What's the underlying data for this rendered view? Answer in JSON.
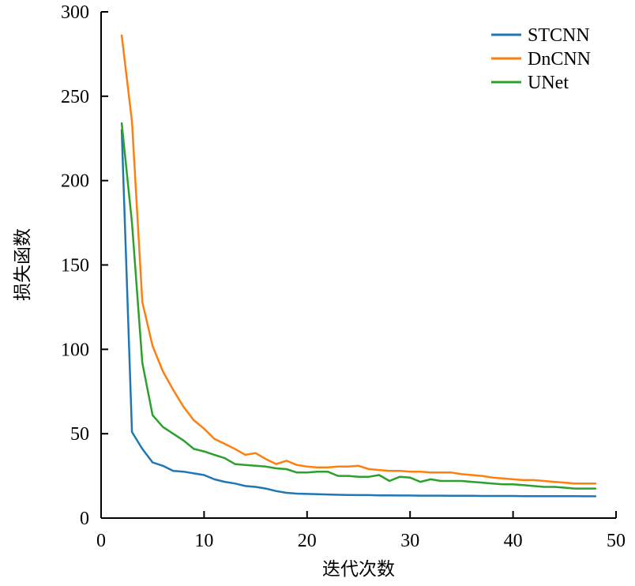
{
  "chart_data": {
    "type": "line",
    "xlabel": "迭代次数",
    "ylabel": "损失函数",
    "xlim": [
      0,
      50
    ],
    "ylim": [
      0,
      300
    ],
    "xticks": [
      0,
      10,
      20,
      30,
      40,
      50
    ],
    "yticks": [
      0,
      50,
      100,
      150,
      200,
      250,
      300
    ],
    "grid": false,
    "legend_position": "top-right",
    "x": [
      2,
      3,
      4,
      5,
      6,
      7,
      8,
      9,
      10,
      11,
      12,
      13,
      14,
      15,
      16,
      17,
      18,
      19,
      20,
      21,
      22,
      23,
      24,
      25,
      26,
      27,
      28,
      29,
      30,
      31,
      32,
      33,
      34,
      35,
      36,
      37,
      38,
      39,
      40,
      41,
      42,
      43,
      44,
      45,
      46,
      47,
      48
    ],
    "series": [
      {
        "name": "STCNN",
        "color": "#1f77b4",
        "values": [
          230,
          51,
          41,
          33,
          31,
          28,
          27.5,
          26.5,
          25.5,
          23,
          21.5,
          20.5,
          19,
          18.5,
          17.5,
          16,
          15,
          14.5,
          14.3,
          14.2,
          14,
          13.8,
          13.7,
          13.6,
          13.6,
          13.5,
          13.5,
          13.4,
          13.4,
          13.3,
          13.3,
          13.3,
          13.2,
          13.2,
          13.2,
          13.1,
          13.1,
          13.1,
          13.1,
          13.0,
          13.0,
          13.0,
          13.0,
          13.0,
          13.0,
          12.9,
          12.9
        ]
      },
      {
        "name": "DnCNN",
        "color": "#ff7f0e",
        "values": [
          286,
          235,
          128,
          102,
          87,
          76,
          66,
          58,
          53,
          47,
          44,
          41,
          37.5,
          38.5,
          35,
          32,
          34,
          31.5,
          30.5,
          30,
          30,
          30.5,
          30.5,
          31,
          29,
          28.5,
          28,
          28,
          27.5,
          27.5,
          27,
          27,
          27,
          26,
          25.5,
          25,
          24,
          23.5,
          23,
          22.5,
          22.5,
          22,
          21.5,
          21,
          20.5,
          20.5,
          20.5
        ]
      },
      {
        "name": "UNet",
        "color": "#2ca02c",
        "values": [
          234,
          175,
          92,
          61,
          54,
          50,
          46,
          41,
          39.5,
          37.5,
          35.5,
          32,
          31.5,
          31,
          30.5,
          29.5,
          29,
          27,
          27,
          27.5,
          27.5,
          25,
          25,
          24.5,
          24.5,
          25.5,
          22,
          24.5,
          24,
          21.5,
          23,
          22,
          22,
          22,
          21.5,
          21,
          20.5,
          20,
          20,
          19.5,
          19,
          18.5,
          18.5,
          18,
          17.5,
          17.5,
          17.5
        ]
      }
    ]
  }
}
